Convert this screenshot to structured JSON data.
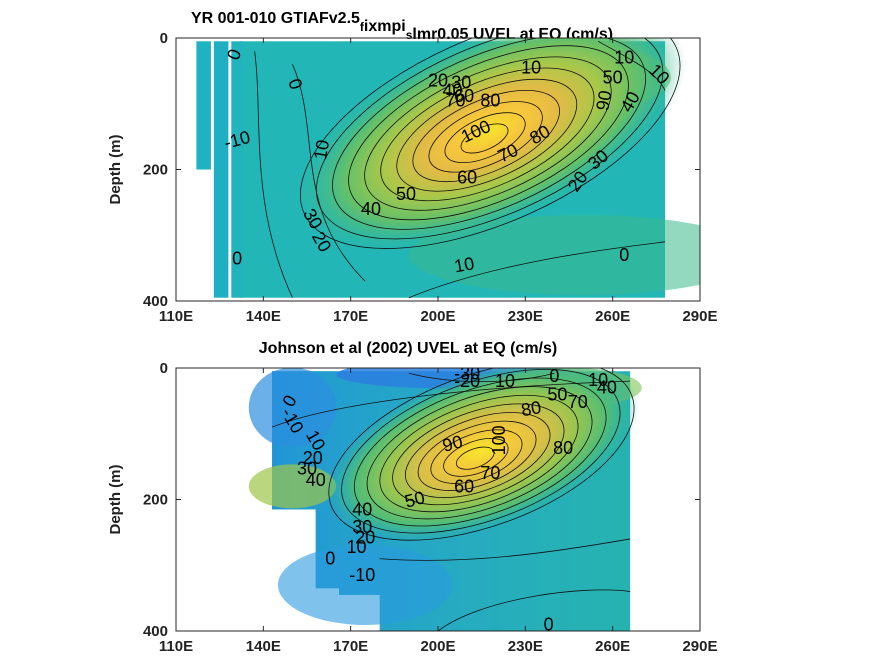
{
  "chart_data": [
    {
      "type": "contour",
      "title": "YR 001-010 GTIAFv2.5",
      "title_parts": [
        {
          "text": "YR 001-010 GTIAFv2.5",
          "sub": false
        },
        {
          "text": "f",
          "sub": true
        },
        {
          "text": "ixmpi",
          "sub": false
        },
        {
          "text": "s",
          "sub": true
        },
        {
          "text": "lmr0.05 UVEL at EQ (cm/s)",
          "sub": false
        }
      ],
      "ylabel": "Depth (m)",
      "xlim": [
        110,
        290
      ],
      "ylim": [
        0,
        400
      ],
      "y_reversed": true,
      "x_ticks": [
        "110E",
        "140E",
        "170E",
        "200E",
        "230E",
        "260E",
        "290E"
      ],
      "y_ticks": [
        "0",
        "200",
        "400"
      ],
      "data_extent": {
        "x": [
          117,
          278
        ],
        "y": [
          5,
          395
        ]
      },
      "core": {
        "x": 218,
        "y": 140,
        "max": 100
      },
      "contour_labels": [
        {
          "text": "0",
          "x": 130,
          "y": 25,
          "angle": -70
        },
        {
          "text": "0",
          "x": 151,
          "y": 70,
          "angle": 70
        },
        {
          "text": "-10",
          "x": 131,
          "y": 155,
          "angle": -15
        },
        {
          "text": "10",
          "x": 160,
          "y": 170,
          "angle": -80
        },
        {
          "text": "30",
          "x": 157,
          "y": 275,
          "angle": 60
        },
        {
          "text": "20",
          "x": 160,
          "y": 310,
          "angle": 60
        },
        {
          "text": "0",
          "x": 131,
          "y": 335,
          "angle": 0
        },
        {
          "text": "40",
          "x": 177,
          "y": 260,
          "angle": 0
        },
        {
          "text": "50",
          "x": 189,
          "y": 237,
          "angle": 0
        },
        {
          "text": "60",
          "x": 210,
          "y": 212,
          "angle": 0
        },
        {
          "text": "70",
          "x": 224,
          "y": 175,
          "angle": -25
        },
        {
          "text": "80",
          "x": 235,
          "y": 147,
          "angle": -30
        },
        {
          "text": "100",
          "x": 213,
          "y": 142,
          "angle": -25
        },
        {
          "text": "20",
          "x": 200,
          "y": 65,
          "angle": 0
        },
        {
          "text": "30",
          "x": 208,
          "y": 68,
          "angle": 0
        },
        {
          "text": "40",
          "x": 205,
          "y": 80,
          "angle": 0
        },
        {
          "text": "60",
          "x": 209,
          "y": 88,
          "angle": 0
        },
        {
          "text": "70",
          "x": 206,
          "y": 95,
          "angle": 0
        },
        {
          "text": "80",
          "x": 218,
          "y": 95,
          "angle": 0
        },
        {
          "text": "10",
          "x": 232,
          "y": 45,
          "angle": 0
        },
        {
          "text": "10",
          "x": 264,
          "y": 30,
          "angle": 0
        },
        {
          "text": "50",
          "x": 260,
          "y": 60,
          "angle": 0
        },
        {
          "text": "90",
          "x": 257,
          "y": 95,
          "angle": -80
        },
        {
          "text": "40",
          "x": 266,
          "y": 97,
          "angle": -60
        },
        {
          "text": "10",
          "x": 276,
          "y": 55,
          "angle": 45
        },
        {
          "text": "30",
          "x": 255,
          "y": 185,
          "angle": -40
        },
        {
          "text": "20",
          "x": 248,
          "y": 218,
          "angle": -55
        },
        {
          "text": "10",
          "x": 209,
          "y": 345,
          "angle": -10
        },
        {
          "text": "0",
          "x": 264,
          "y": 330,
          "angle": 0
        }
      ]
    },
    {
      "type": "contour",
      "title": "Johnson et al (2002) UVEL at EQ (cm/s)",
      "title_parts": [
        {
          "text": "Johnson et al (2002) UVEL at EQ (cm/s)",
          "sub": false
        }
      ],
      "ylabel": "Depth (m)",
      "xlim": [
        110,
        290
      ],
      "ylim": [
        0,
        400
      ],
      "y_reversed": true,
      "x_ticks": [
        "110E",
        "140E",
        "170E",
        "200E",
        "230E",
        "260E",
        "290E"
      ],
      "y_ticks": [
        "0",
        "200",
        "400"
      ],
      "data_extent": {
        "x": [
          143,
          266
        ],
        "y": [
          5,
          400
        ]
      },
      "core": {
        "x": 215,
        "y": 125,
        "max": 100
      },
      "contour_labels": [
        {
          "text": "-30",
          "x": 210,
          "y": 8,
          "angle": 0
        },
        {
          "text": "-20",
          "x": 210,
          "y": 20,
          "angle": 0
        },
        {
          "text": "10",
          "x": 223,
          "y": 20,
          "angle": 0
        },
        {
          "text": "0",
          "x": 240,
          "y": 12,
          "angle": 0
        },
        {
          "text": "10",
          "x": 255,
          "y": 18,
          "angle": 0
        },
        {
          "text": "50",
          "x": 241,
          "y": 40,
          "angle": 0
        },
        {
          "text": "40",
          "x": 258,
          "y": 30,
          "angle": 0
        },
        {
          "text": "80",
          "x": 232,
          "y": 62,
          "angle": -10
        },
        {
          "text": "70",
          "x": 248,
          "y": 52,
          "angle": 0
        },
        {
          "text": "90",
          "x": 205,
          "y": 115,
          "angle": -15
        },
        {
          "text": "100",
          "x": 221,
          "y": 110,
          "angle": -90
        },
        {
          "text": "80",
          "x": 243,
          "y": 122,
          "angle": 0
        },
        {
          "text": "70",
          "x": 218,
          "y": 160,
          "angle": 0
        },
        {
          "text": "60",
          "x": 209,
          "y": 180,
          "angle": 0
        },
        {
          "text": "50",
          "x": 192,
          "y": 200,
          "angle": -15
        },
        {
          "text": "0",
          "x": 149,
          "y": 50,
          "angle": -60
        },
        {
          "text": "-10",
          "x": 150,
          "y": 80,
          "angle": 60
        },
        {
          "text": "10",
          "x": 158,
          "y": 110,
          "angle": 60
        },
        {
          "text": "20",
          "x": 157,
          "y": 137,
          "angle": 0
        },
        {
          "text": "30",
          "x": 155,
          "y": 153,
          "angle": 0
        },
        {
          "text": "40",
          "x": 158,
          "y": 170,
          "angle": 0
        },
        {
          "text": "40",
          "x": 174,
          "y": 215,
          "angle": 0
        },
        {
          "text": "30",
          "x": 174,
          "y": 242,
          "angle": 0
        },
        {
          "text": "20",
          "x": 175,
          "y": 258,
          "angle": 0
        },
        {
          "text": "10",
          "x": 172,
          "y": 272,
          "angle": 0
        },
        {
          "text": "0",
          "x": 163,
          "y": 290,
          "angle": 0
        },
        {
          "text": "-10",
          "x": 174,
          "y": 315,
          "angle": 0
        },
        {
          "text": "0",
          "x": 238,
          "y": 390,
          "angle": 0
        }
      ]
    }
  ]
}
